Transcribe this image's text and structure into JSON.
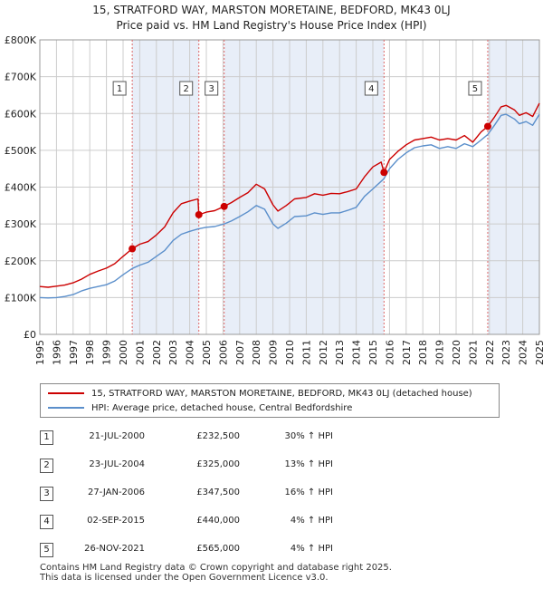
{
  "title": "15, STRATFORD WAY, MARSTON MORETAINE, BEDFORD, MK43 0LJ",
  "subtitle": "Price paid vs. HM Land Registry's House Price Index (HPI)",
  "colors": {
    "property": "#cc0000",
    "hpi": "#5b8fcb",
    "shade": "#e8eef8",
    "grid": "#cccccc",
    "vline": "#dd6666"
  },
  "chart_data": {
    "type": "line",
    "title": "15, STRATFORD WAY, MARSTON MORETAINE, BEDFORD, MK43 0LJ",
    "subtitle": "Price paid vs. HM Land Registry's House Price Index (HPI)",
    "ylim": [
      0,
      800000
    ],
    "xlim": [
      1995,
      2025
    ],
    "y_ticks": [
      0,
      100000,
      200000,
      300000,
      400000,
      500000,
      600000,
      700000,
      800000
    ],
    "y_tick_labels": [
      "£0",
      "£100K",
      "£200K",
      "£300K",
      "£400K",
      "£500K",
      "£600K",
      "£700K",
      "£800K"
    ],
    "x_ticks": [
      "1995",
      "1996",
      "1997",
      "1998",
      "1999",
      "2000",
      "2001",
      "2002",
      "2003",
      "2004",
      "2005",
      "2006",
      "2007",
      "2008",
      "2009",
      "2010",
      "2011",
      "2012",
      "2013",
      "2014",
      "2015",
      "2016",
      "2017",
      "2018",
      "2019",
      "2020",
      "2021",
      "2022",
      "2023",
      "2024",
      "2025"
    ],
    "grid": true,
    "series": [
      {
        "name": "15, STRATFORD WAY, MARSTON MORETAINE, BEDFORD, MK43 0LJ (detached house)",
        "color": "#cc0000",
        "points": [
          [
            1995.0,
            130000
          ],
          [
            1995.5,
            128000
          ],
          [
            1996.0,
            131000
          ],
          [
            1996.5,
            134000
          ],
          [
            1997.0,
            140000
          ],
          [
            1997.5,
            150000
          ],
          [
            1998.0,
            163000
          ],
          [
            1998.5,
            172000
          ],
          [
            1999.0,
            180000
          ],
          [
            1999.5,
            192000
          ],
          [
            2000.0,
            212000
          ],
          [
            2000.55,
            232500
          ],
          [
            2001.0,
            245000
          ],
          [
            2001.5,
            252000
          ],
          [
            2002.0,
            270000
          ],
          [
            2002.5,
            292000
          ],
          [
            2003.0,
            330000
          ],
          [
            2003.5,
            355000
          ],
          [
            2004.0,
            362000
          ],
          [
            2004.5,
            368000
          ],
          [
            2004.55,
            325000
          ],
          [
            2005.0,
            332000
          ],
          [
            2005.5,
            336000
          ],
          [
            2006.07,
            347500
          ],
          [
            2006.5,
            358000
          ],
          [
            2007.0,
            372000
          ],
          [
            2007.5,
            385000
          ],
          [
            2008.0,
            408000
          ],
          [
            2008.5,
            395000
          ],
          [
            2009.0,
            352000
          ],
          [
            2009.3,
            335000
          ],
          [
            2009.8,
            350000
          ],
          [
            2010.3,
            368000
          ],
          [
            2011.0,
            372000
          ],
          [
            2011.5,
            382000
          ],
          [
            2012.0,
            378000
          ],
          [
            2012.5,
            383000
          ],
          [
            2013.0,
            382000
          ],
          [
            2013.5,
            388000
          ],
          [
            2014.0,
            395000
          ],
          [
            2014.5,
            428000
          ],
          [
            2015.0,
            455000
          ],
          [
            2015.5,
            468000
          ],
          [
            2015.67,
            440000
          ],
          [
            2016.0,
            475000
          ],
          [
            2016.5,
            497000
          ],
          [
            2017.0,
            515000
          ],
          [
            2017.5,
            528000
          ],
          [
            2018.0,
            532000
          ],
          [
            2018.5,
            536000
          ],
          [
            2019.0,
            528000
          ],
          [
            2019.5,
            532000
          ],
          [
            2020.0,
            528000
          ],
          [
            2020.5,
            540000
          ],
          [
            2021.0,
            522000
          ],
          [
            2021.5,
            550000
          ],
          [
            2021.9,
            565000
          ],
          [
            2022.3,
            590000
          ],
          [
            2022.7,
            618000
          ],
          [
            2023.0,
            622000
          ],
          [
            2023.5,
            610000
          ],
          [
            2023.8,
            595000
          ],
          [
            2024.2,
            602000
          ],
          [
            2024.6,
            592000
          ],
          [
            2025.0,
            628000
          ]
        ]
      },
      {
        "name": "HPI: Average price, detached house, Central Bedfordshire",
        "color": "#5b8fcb",
        "points": [
          [
            1995.0,
            100000
          ],
          [
            1995.5,
            99000
          ],
          [
            1996.0,
            100000
          ],
          [
            1996.5,
            103000
          ],
          [
            1997.0,
            108000
          ],
          [
            1997.5,
            118000
          ],
          [
            1998.0,
            125000
          ],
          [
            1998.5,
            130000
          ],
          [
            1999.0,
            135000
          ],
          [
            1999.5,
            145000
          ],
          [
            2000.0,
            162000
          ],
          [
            2000.55,
            179000
          ],
          [
            2001.0,
            188000
          ],
          [
            2001.5,
            196000
          ],
          [
            2002.0,
            212000
          ],
          [
            2002.5,
            228000
          ],
          [
            2003.0,
            255000
          ],
          [
            2003.5,
            272000
          ],
          [
            2004.0,
            280000
          ],
          [
            2004.55,
            287000
          ],
          [
            2005.0,
            291000
          ],
          [
            2005.5,
            293000
          ],
          [
            2006.07,
            300000
          ],
          [
            2006.5,
            308000
          ],
          [
            2007.0,
            320000
          ],
          [
            2007.5,
            333000
          ],
          [
            2008.0,
            350000
          ],
          [
            2008.5,
            340000
          ],
          [
            2009.0,
            300000
          ],
          [
            2009.3,
            288000
          ],
          [
            2009.8,
            302000
          ],
          [
            2010.3,
            320000
          ],
          [
            2011.0,
            322000
          ],
          [
            2011.5,
            330000
          ],
          [
            2012.0,
            326000
          ],
          [
            2012.5,
            330000
          ],
          [
            2013.0,
            330000
          ],
          [
            2013.5,
            337000
          ],
          [
            2014.0,
            345000
          ],
          [
            2014.5,
            375000
          ],
          [
            2015.0,
            395000
          ],
          [
            2015.67,
            423000
          ],
          [
            2016.0,
            450000
          ],
          [
            2016.5,
            475000
          ],
          [
            2017.0,
            493000
          ],
          [
            2017.5,
            507000
          ],
          [
            2018.0,
            512000
          ],
          [
            2018.5,
            515000
          ],
          [
            2019.0,
            505000
          ],
          [
            2019.5,
            510000
          ],
          [
            2020.0,
            505000
          ],
          [
            2020.5,
            518000
          ],
          [
            2021.0,
            510000
          ],
          [
            2021.5,
            528000
          ],
          [
            2021.9,
            543000
          ],
          [
            2022.3,
            568000
          ],
          [
            2022.7,
            595000
          ],
          [
            2023.0,
            598000
          ],
          [
            2023.5,
            585000
          ],
          [
            2023.8,
            572000
          ],
          [
            2024.2,
            578000
          ],
          [
            2024.6,
            568000
          ],
          [
            2025.0,
            598000
          ]
        ]
      }
    ],
    "sales": [
      {
        "id": "1",
        "x": 2000.55,
        "price": 232500,
        "date": "21-JUL-2000",
        "price_label": "£232,500",
        "hpi_label": "30% ↑ HPI"
      },
      {
        "id": "2",
        "x": 2004.55,
        "price": 325000,
        "date": "23-JUL-2004",
        "price_label": "£325,000",
        "hpi_label": "13% ↑ HPI"
      },
      {
        "id": "3",
        "x": 2006.07,
        "price": 347500,
        "date": "27-JAN-2006",
        "price_label": "£347,500",
        "hpi_label": "16% ↑ HPI"
      },
      {
        "id": "4",
        "x": 2015.67,
        "price": 440000,
        "date": "02-SEP-2015",
        "price_label": "£440,000",
        "hpi_label": "4% ↑ HPI"
      },
      {
        "id": "5",
        "x": 2021.9,
        "price": 565000,
        "date": "26-NOV-2021",
        "price_label": "£565,000",
        "hpi_label": "4% ↑ HPI"
      }
    ],
    "shaded_periods": [
      [
        2000.55,
        2004.55
      ],
      [
        2006.07,
        2015.67
      ],
      [
        2021.9,
        2025
      ]
    ]
  },
  "legend": {
    "property_label": "15, STRATFORD WAY, MARSTON MORETAINE, BEDFORD, MK43 0LJ (detached house)",
    "hpi_label": "HPI: Average price, detached house, Central Bedfordshire"
  },
  "footer": {
    "line1": "Contains HM Land Registry data © Crown copyright and database right 2025.",
    "line2": "This data is licensed under the Open Government Licence v3.0."
  }
}
